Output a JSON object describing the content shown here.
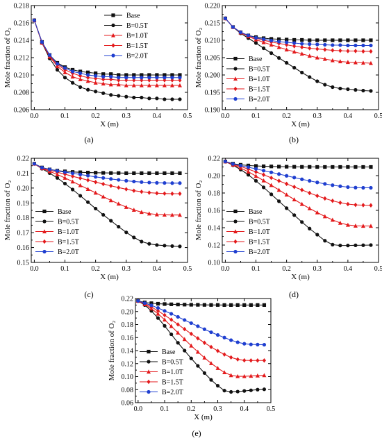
{
  "colors": {
    "Base": "#111111",
    "B=0.5T": "#111111",
    "B=1.0T": "#e31a1c",
    "B=1.5T": "#e31a1c",
    "B=2.0T": "#1f3fd0"
  },
  "markers": {
    "Base": "square",
    "B=0.5T": "circle",
    "B=1.0T": "triangle",
    "B=1.5T": "diamond",
    "B=2.0T": "circle"
  },
  "x_values": [
    0,
    0.025,
    0.05,
    0.075,
    0.1,
    0.125,
    0.15,
    0.175,
    0.2,
    0.225,
    0.25,
    0.275,
    0.3,
    0.325,
    0.35,
    0.375,
    0.4,
    0.425,
    0.45,
    0.475
  ],
  "chart_data": [
    {
      "type": "line",
      "panel_label": "(a)",
      "xlabel": "X (m)",
      "ylabel": "Mole fraction of O₂",
      "xlim": [
        -0.01,
        0.5
      ],
      "ylim": [
        0.206,
        0.218
      ],
      "xticks": [
        "0.0",
        "0.1",
        "0.2",
        "0.3",
        "0.4",
        "0.5"
      ],
      "yticks": [
        "0.206",
        "0.208",
        "0.210",
        "0.212",
        "0.214",
        "0.216",
        "0.218"
      ],
      "legend_position": "top-right",
      "series": [
        {
          "name": "Base",
          "values": [
            0.2163,
            0.2138,
            0.2123,
            0.2114,
            0.2109,
            0.2106,
            0.2104,
            0.2103,
            0.2102,
            0.2101,
            0.2101,
            0.21,
            0.21,
            0.21,
            0.21,
            0.21,
            0.21,
            0.21,
            0.21,
            0.21
          ]
        },
        {
          "name": "B=0.5T",
          "values": [
            0.2163,
            0.2137,
            0.2119,
            0.2106,
            0.2097,
            0.2091,
            0.2086,
            0.2083,
            0.2081,
            0.2079,
            0.2077,
            0.2076,
            0.2075,
            0.2074,
            0.2074,
            0.2073,
            0.2073,
            0.2072,
            0.2072,
            0.2072
          ]
        },
        {
          "name": "B=1.0T",
          "values": [
            0.2163,
            0.2137,
            0.2121,
            0.211,
            0.2103,
            0.2098,
            0.2095,
            0.2093,
            0.2091,
            0.209,
            0.2089,
            0.2089,
            0.2088,
            0.2088,
            0.2088,
            0.2088,
            0.2088,
            0.2088,
            0.2088,
            0.2088
          ]
        },
        {
          "name": "B=1.5T",
          "values": [
            0.2163,
            0.2138,
            0.2122,
            0.2112,
            0.2106,
            0.2102,
            0.2099,
            0.2097,
            0.2096,
            0.2095,
            0.2095,
            0.2094,
            0.2094,
            0.2094,
            0.2094,
            0.2094,
            0.2094,
            0.2094,
            0.2094,
            0.2094
          ]
        },
        {
          "name": "B=2.0T",
          "values": [
            0.2163,
            0.2138,
            0.2123,
            0.2113,
            0.2108,
            0.2104,
            0.2102,
            0.21,
            0.2099,
            0.2098,
            0.2098,
            0.2097,
            0.2097,
            0.2097,
            0.2097,
            0.2097,
            0.2097,
            0.2097,
            0.2097,
            0.2097
          ]
        }
      ]
    },
    {
      "type": "line",
      "panel_label": "(b)",
      "xlabel": "X (m)",
      "ylabel": "Mole fraction of O₂",
      "xlim": [
        -0.01,
        0.5
      ],
      "ylim": [
        0.19,
        0.22
      ],
      "xticks": [
        "0.0",
        "0.1",
        "0.2",
        "0.3",
        "0.4",
        "0.5"
      ],
      "yticks": [
        "0.190",
        "0.195",
        "0.200",
        "0.205",
        "0.210",
        "0.215",
        "0.220"
      ],
      "legend_position": "bottom-left",
      "series": [
        {
          "name": "Base",
          "values": [
            0.2163,
            0.2138,
            0.2123,
            0.2114,
            0.2109,
            0.2106,
            0.2104,
            0.2103,
            0.2102,
            0.2101,
            0.2101,
            0.21,
            0.21,
            0.21,
            0.21,
            0.21,
            0.21,
            0.21,
            0.21,
            0.21
          ]
        },
        {
          "name": "B=0.5T",
          "values": [
            0.2163,
            0.2138,
            0.212,
            0.2106,
            0.2092,
            0.2077,
            0.2063,
            0.2049,
            0.2035,
            0.2021,
            0.2007,
            0.1994,
            0.1982,
            0.1972,
            0.1965,
            0.1961,
            0.1959,
            0.1957,
            0.1955,
            0.1954
          ]
        },
        {
          "name": "B=1.0T",
          "values": [
            0.2163,
            0.2138,
            0.2122,
            0.2111,
            0.2102,
            0.2094,
            0.2087,
            0.208,
            0.2073,
            0.2067,
            0.2061,
            0.2055,
            0.205,
            0.2046,
            0.2042,
            0.2039,
            0.2037,
            0.2036,
            0.2035,
            0.2034
          ]
        },
        {
          "name": "B=1.5T",
          "values": [
            0.2163,
            0.2138,
            0.2123,
            0.2113,
            0.2106,
            0.21,
            0.2095,
            0.2091,
            0.2087,
            0.2083,
            0.208,
            0.2077,
            0.2075,
            0.2073,
            0.2071,
            0.207,
            0.2069,
            0.2069,
            0.2068,
            0.2068
          ]
        },
        {
          "name": "B=2.0T",
          "values": [
            0.2163,
            0.2138,
            0.2123,
            0.2114,
            0.2107,
            0.2103,
            0.2099,
            0.2096,
            0.2094,
            0.2092,
            0.209,
            0.2089,
            0.2088,
            0.2087,
            0.2086,
            0.2086,
            0.2085,
            0.2085,
            0.2085,
            0.2085
          ]
        }
      ]
    },
    {
      "type": "line",
      "panel_label": "(c)",
      "xlabel": "X (m)",
      "ylabel": "Mole fraction of O₂",
      "xlim": [
        -0.01,
        0.5
      ],
      "ylim": [
        0.15,
        0.22
      ],
      "xticks": [
        "0.0",
        "0.1",
        "0.2",
        "0.3",
        "0.4",
        "0.5"
      ],
      "yticks": [
        "0.15",
        "0.16",
        "0.17",
        "0.18",
        "0.19",
        "0.20",
        "0.21",
        "0.22"
      ],
      "legend_position": "bottom-left",
      "series": [
        {
          "name": "Base",
          "values": [
            0.2163,
            0.2138,
            0.2125,
            0.2117,
            0.2112,
            0.2108,
            0.2106,
            0.2104,
            0.2103,
            0.2102,
            0.2101,
            0.2101,
            0.21,
            0.21,
            0.21,
            0.21,
            0.21,
            0.21,
            0.21,
            0.21
          ]
        },
        {
          "name": "B=0.5T",
          "values": [
            0.2163,
            0.213,
            0.21,
            0.2068,
            0.203,
            0.199,
            0.1948,
            0.1905,
            0.1862,
            0.182,
            0.178,
            0.174,
            0.1702,
            0.1668,
            0.164,
            0.1625,
            0.1617,
            0.1613,
            0.161,
            0.1608
          ]
        },
        {
          "name": "B=1.0T",
          "values": [
            0.2163,
            0.2132,
            0.2112,
            0.2091,
            0.2068,
            0.2043,
            0.2018,
            0.1993,
            0.1968,
            0.1942,
            0.1917,
            0.1894,
            0.1872,
            0.1853,
            0.1838,
            0.1828,
            0.1822,
            0.182,
            0.1819,
            0.1819
          ]
        },
        {
          "name": "B=1.5T",
          "values": [
            0.2163,
            0.2135,
            0.212,
            0.2106,
            0.2093,
            0.2079,
            0.2066,
            0.2053,
            0.204,
            0.2027,
            0.2015,
            0.2003,
            0.1992,
            0.1982,
            0.1975,
            0.1969,
            0.1965,
            0.1963,
            0.1962,
            0.1962
          ]
        },
        {
          "name": "B=2.0T",
          "values": [
            0.2163,
            0.2137,
            0.2125,
            0.2115,
            0.2107,
            0.2099,
            0.2091,
            0.2083,
            0.2075,
            0.2068,
            0.2061,
            0.2055,
            0.2049,
            0.2044,
            0.204,
            0.2037,
            0.2035,
            0.2034,
            0.2033,
            0.2033
          ]
        }
      ]
    },
    {
      "type": "line",
      "panel_label": "(d)",
      "xlabel": "X (m)",
      "ylabel": "Mole fraction of O₂",
      "xlim": [
        -0.01,
        0.5
      ],
      "ylim": [
        0.1,
        0.22
      ],
      "xticks": [
        "0.0",
        "0.1",
        "0.2",
        "0.3",
        "0.4",
        "0.5"
      ],
      "yticks": [
        "0.10",
        "0.12",
        "0.14",
        "0.16",
        "0.18",
        "0.20",
        "0.22"
      ],
      "legend_position": "bottom-left",
      "series": [
        {
          "name": "Base",
          "values": [
            0.2163,
            0.2138,
            0.2125,
            0.2117,
            0.2112,
            0.2108,
            0.2106,
            0.2104,
            0.2103,
            0.2102,
            0.2101,
            0.2101,
            0.21,
            0.21,
            0.21,
            0.21,
            0.21,
            0.21,
            0.21,
            0.21
          ]
        },
        {
          "name": "B=0.5T",
          "values": [
            0.2163,
            0.212,
            0.207,
            0.201,
            0.194,
            0.1865,
            0.1785,
            0.1705,
            0.1625,
            0.1545,
            0.1465,
            0.139,
            0.132,
            0.125,
            0.1205,
            0.1195,
            0.1195,
            0.1197,
            0.1198,
            0.12
          ]
        },
        {
          "name": "B=1.0T",
          "values": [
            0.2163,
            0.2125,
            0.2088,
            0.2045,
            0.1995,
            0.1943,
            0.189,
            0.1835,
            0.178,
            0.1725,
            0.1672,
            0.1622,
            0.1575,
            0.153,
            0.149,
            0.1455,
            0.1432,
            0.1422,
            0.142,
            0.142
          ]
        },
        {
          "name": "B=1.5T",
          "values": [
            0.2163,
            0.213,
            0.2105,
            0.2075,
            0.2043,
            0.201,
            0.1975,
            0.194,
            0.1905,
            0.187,
            0.1835,
            0.18,
            0.1767,
            0.1737,
            0.171,
            0.1688,
            0.1672,
            0.1663,
            0.166,
            0.1658
          ]
        },
        {
          "name": "B=2.0T",
          "values": [
            0.2163,
            0.2135,
            0.2116,
            0.2097,
            0.2078,
            0.2058,
            0.2038,
            0.2018,
            0.1998,
            0.1978,
            0.1958,
            0.194,
            0.1922,
            0.1905,
            0.189,
            0.1878,
            0.1868,
            0.1862,
            0.186,
            0.186
          ]
        }
      ]
    },
    {
      "type": "line",
      "panel_label": "(e)",
      "xlabel": "X (m)",
      "ylabel": "Mole fraction of O₂",
      "xlim": [
        -0.01,
        0.5
      ],
      "ylim": [
        0.06,
        0.22
      ],
      "xticks": [
        "0.0",
        "0.1",
        "0.2",
        "0.3",
        "0.4",
        "0.5"
      ],
      "yticks": [
        "0.06",
        "0.08",
        "0.10",
        "0.12",
        "0.14",
        "0.16",
        "0.18",
        "0.20",
        "0.22"
      ],
      "legend_position": "bottom-left",
      "series": [
        {
          "name": "Base",
          "values": [
            0.2163,
            0.214,
            0.2128,
            0.212,
            0.2115,
            0.2111,
            0.2108,
            0.2106,
            0.2104,
            0.2103,
            0.2102,
            0.2101,
            0.2101,
            0.21,
            0.21,
            0.21,
            0.21,
            0.21,
            0.21,
            0.21
          ]
        },
        {
          "name": "B=0.5T",
          "values": [
            0.2163,
            0.21,
            0.201,
            0.19,
            0.178,
            0.165,
            0.152,
            0.14,
            0.128,
            0.1165,
            0.1055,
            0.095,
            0.086,
            0.0785,
            0.0765,
            0.077,
            0.078,
            0.079,
            0.08,
            0.0805
          ]
        },
        {
          "name": "B=1.0T",
          "values": [
            0.2163,
            0.211,
            0.2045,
            0.1965,
            0.1875,
            0.1775,
            0.1675,
            0.1575,
            0.1475,
            0.138,
            0.129,
            0.1205,
            0.113,
            0.1065,
            0.102,
            0.1005,
            0.1005,
            0.101,
            0.1015,
            0.102
          ]
        },
        {
          "name": "B=1.5T",
          "values": [
            0.2163,
            0.212,
            0.207,
            0.201,
            0.1945,
            0.1875,
            0.1802,
            0.173,
            0.1658,
            0.1588,
            0.152,
            0.1455,
            0.1395,
            0.134,
            0.1295,
            0.1265,
            0.125,
            0.1248,
            0.1248,
            0.1248
          ]
        },
        {
          "name": "B=2.0T",
          "values": [
            0.2163,
            0.213,
            0.2095,
            0.2055,
            0.201,
            0.1965,
            0.1918,
            0.187,
            0.1822,
            0.1775,
            0.1728,
            0.1682,
            0.164,
            0.16,
            0.156,
            0.1528,
            0.1505,
            0.1495,
            0.1492,
            0.149
          ]
        }
      ]
    }
  ]
}
